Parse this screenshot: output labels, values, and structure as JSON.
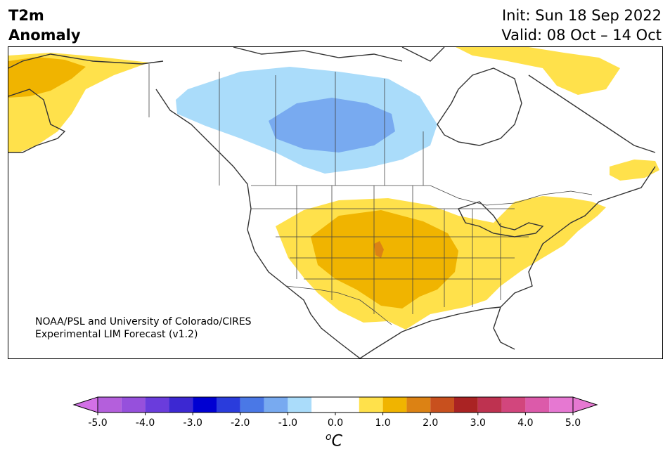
{
  "header": {
    "title_line1": "T2m",
    "title_line2": "Anomaly",
    "init_text": "Init: Sun 18 Sep 2022",
    "valid_text": "Valid: 08 Oct – 14 Oct"
  },
  "map": {
    "region": "North America",
    "credit_line1": "NOAA/PSL and University of Colorado/CIRES",
    "credit_line2": "Experimental LIM Forecast (v1.2)",
    "features": {
      "cold_anomaly": "south-central Canada (Alberta, Saskatchewan, Manitoba, northern Ontario)",
      "warm_anomaly_main": "central and southern United States (Rockies, Plains, Southwest)",
      "warm_anomaly_northeast": "Great Lakes, Northeast US, Atlantic Canada",
      "warm_anomaly_alaska": "Alaska and western Yukon",
      "warm_anomaly_arctic": "northeastern Canadian Arctic, Labrador"
    }
  },
  "colorbar": {
    "unit_base": "C",
    "unit_sup": "o",
    "tick_labels": [
      "-5.0",
      "-4.0",
      "-3.0",
      "-2.0",
      "-1.0",
      "0.0",
      "1.0",
      "2.0",
      "3.0",
      "4.0",
      "5.0"
    ],
    "bins": [
      {
        "from": -5.0,
        "to": -4.5,
        "color": "#b45fdc"
      },
      {
        "from": -4.5,
        "to": -4.0,
        "color": "#9650dc"
      },
      {
        "from": -4.0,
        "to": -3.5,
        "color": "#6a3cdc"
      },
      {
        "from": -3.5,
        "to": -3.0,
        "color": "#3c28d2"
      },
      {
        "from": -3.0,
        "to": -2.5,
        "color": "#0000d2"
      },
      {
        "from": -2.5,
        "to": -2.0,
        "color": "#2a3cdc"
      },
      {
        "from": -2.0,
        "to": -1.5,
        "color": "#4a78e6"
      },
      {
        "from": -1.5,
        "to": -1.0,
        "color": "#78aaf0"
      },
      {
        "from": -1.0,
        "to": -0.5,
        "color": "#aadcfa"
      },
      {
        "from": -0.5,
        "to": 0.5,
        "color": "#ffffff"
      },
      {
        "from": 0.5,
        "to": 1.0,
        "color": "#ffe14b"
      },
      {
        "from": 1.0,
        "to": 1.5,
        "color": "#f0b400"
      },
      {
        "from": 1.5,
        "to": 2.0,
        "color": "#dc8214"
      },
      {
        "from": 2.0,
        "to": 2.5,
        "color": "#c8501e"
      },
      {
        "from": 2.5,
        "to": 3.0,
        "color": "#aa2323"
      },
      {
        "from": 3.0,
        "to": 3.5,
        "color": "#be3250"
      },
      {
        "from": 3.5,
        "to": 4.0,
        "color": "#d2467d"
      },
      {
        "from": 4.0,
        "to": 4.5,
        "color": "#dc5aaa"
      },
      {
        "from": 4.5,
        "to": 5.0,
        "color": "#e678d2"
      }
    ],
    "under_color": "#d270e6",
    "over_color": "#e678d2"
  }
}
